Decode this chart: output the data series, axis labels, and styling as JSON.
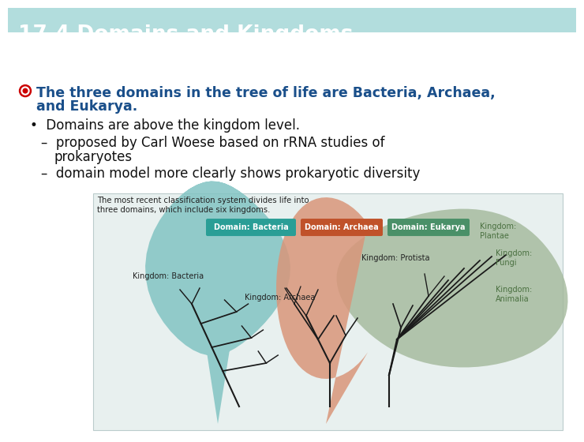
{
  "title": "17.4 Domains and Kingdoms",
  "title_bg_color_top": "#006060",
  "title_bg_color": "#007878",
  "title_text_color": "#FFFFFF",
  "title_fontsize": 19,
  "body_bg_color": "#FFFFFF",
  "bullet1_color": "#1a4f8a",
  "bullet1_icon_color": "#cc0000",
  "subbullet_color": "#111111",
  "caption_color": "#222222",
  "bacteria_blob_color": "#82C4C3",
  "archaea_blob_color": "#D9967A",
  "eukarya_blob_color": "#A3B89A",
  "bacteria_label_bg": "#2A9E96",
  "archaea_label_bg": "#C0522A",
  "eukarya_label_bg": "#4A9068",
  "tree_color": "#1a1a1a",
  "kingdom_text_color": "#222222",
  "kingdom_eukarya_color": "#4A7040"
}
